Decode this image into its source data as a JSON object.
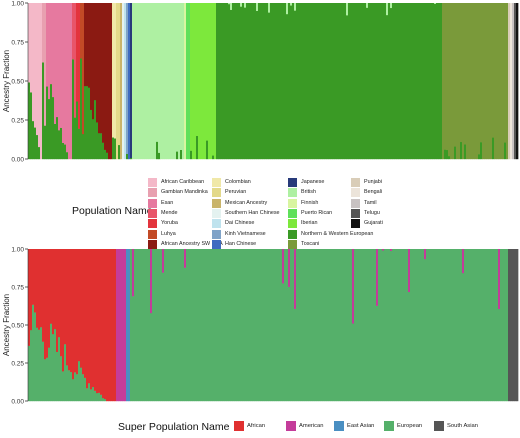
{
  "chart_data": [
    {
      "type": "bar",
      "stacked": true,
      "description_type": "admixture ancestry stacked bars",
      "ylabel": "Ancestry Fraction",
      "xlabel": "",
      "ylim": [
        0,
        1
      ],
      "yticks": [
        "0.00",
        "0.25",
        "0.50",
        "0.75",
        "1.00"
      ],
      "legend_title": "Population Name",
      "legend_placement": "below",
      "series": [
        {
          "name": "African Caribbean",
          "color": "#f4b8c8",
          "share": 0.03
        },
        {
          "name": "Gambian Mandinka",
          "color": "#e8a0b0",
          "share": 0.01
        },
        {
          "name": "Esan",
          "color": "#e6799f",
          "share": 0.055
        },
        {
          "name": "Mende",
          "color": "#e8556a",
          "share": 0.01
        },
        {
          "name": "Yoruba",
          "color": "#e3343d",
          "share": 0.01
        },
        {
          "name": "Luhya",
          "color": "#c24a26",
          "share": 0.008
        },
        {
          "name": "African Ancestry SW USA",
          "color": "#8b1a12",
          "share": 0.06
        },
        {
          "name": "Colombian",
          "color": "#f0e8a8",
          "share": 0.008
        },
        {
          "name": "Peruvian",
          "color": "#e3d98a",
          "share": 0.008
        },
        {
          "name": "Mexican Ancestry",
          "color": "#c9b46a",
          "share": 0.006
        },
        {
          "name": "Southern Han Chinese",
          "color": "#e4f2f0",
          "share": 0.004
        },
        {
          "name": "Dai Chinese",
          "color": "#bfe3ee",
          "share": 0.003
        },
        {
          "name": "Kinh Vietnamese",
          "color": "#7fa3c8",
          "share": 0.003
        },
        {
          "name": "Han Chinese",
          "color": "#3e6bc0",
          "share": 0.003
        },
        {
          "name": "Japanese",
          "color": "#283a7a",
          "share": 0.003
        },
        {
          "name": "British",
          "color": "#aef0a2",
          "share": 0.11
        },
        {
          "name": "Finnish",
          "color": "#d8f5a0",
          "share": 0.006
        },
        {
          "name": "Puerto Rican",
          "color": "#5fe05a",
          "share": 0.01
        },
        {
          "name": "Iberian",
          "color": "#7de83c",
          "share": 0.055
        },
        {
          "name": "Northern & Western European",
          "color": "#3a9a25",
          "share": 0.48
        },
        {
          "name": "Toscani",
          "color": "#7a9a3a",
          "share": 0.14
        },
        {
          "name": "Punjabi",
          "color": "#d9cdb8",
          "share": 0.004
        },
        {
          "name": "Bengali",
          "color": "#ece4da",
          "share": 0.004
        },
        {
          "name": "Tamil",
          "color": "#c8c2c2",
          "share": 0.003
        },
        {
          "name": "Telugu",
          "color": "#555555",
          "share": 0.003
        },
        {
          "name": "Gujarati",
          "color": "#111111",
          "share": 0.002
        }
      ]
    },
    {
      "type": "bar",
      "stacked": true,
      "ylabel": "Ancestry Fraction",
      "xlabel": "",
      "ylim": [
        0,
        1
      ],
      "yticks": [
        "0.00",
        "0.25",
        "0.50",
        "0.75",
        "1.00"
      ],
      "legend_title": "Super Population Name",
      "legend_placement": "bottom",
      "series": [
        {
          "name": "African",
          "color": "#e03030",
          "share": 0.18
        },
        {
          "name": "American",
          "color": "#c43c9a",
          "share": 0.02
        },
        {
          "name": "East Asian",
          "color": "#4a8fc2",
          "share": 0.01
        },
        {
          "name": "European",
          "color": "#55b06a",
          "share": 0.77
        },
        {
          "name": "South Asian",
          "color": "#555555",
          "share": 0.02
        }
      ]
    }
  ]
}
